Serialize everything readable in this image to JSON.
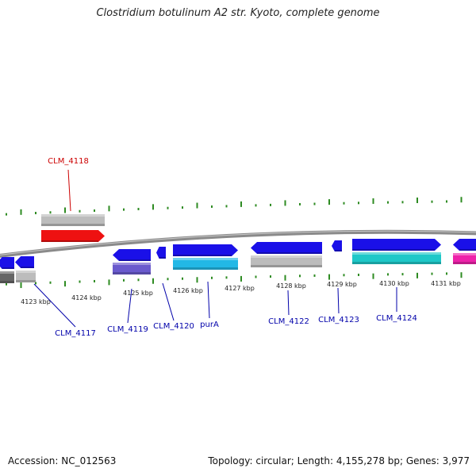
{
  "title": "Clostridium botulinum A2 str. Kyoto, complete genome",
  "footer": {
    "accession": "Accession: NC_012563",
    "summary": "Topology: circular; Length: 4,155,278 bp; Genes: 3,977"
  },
  "colors": {
    "backbone": "#777777",
    "tick": "#2e8b22",
    "forward_label": "#cc0000",
    "reverse_label": "#0000aa",
    "cds_blue": "#1a10e8",
    "rna_cyan": "#1ec8c8",
    "rna_red": "#ee1111",
    "gray": "#bcbcbc",
    "slate": "#6a5acd",
    "skyblue": "#22b8e6",
    "magenta": "#ee22aa",
    "darkgray": "#666666"
  },
  "ticks": [
    "4123 kbp",
    "4124 kbp",
    "4125 kbp",
    "4126 kbp",
    "4127 kbp",
    "4128 kbp",
    "4129 kbp",
    "4130 kbp",
    "4131 kbp"
  ],
  "genes": [
    {
      "label": "CLM_4117",
      "strand": "reverse"
    },
    {
      "label": "CLM_4118",
      "strand": "forward"
    },
    {
      "label": "CLM_4119",
      "strand": "reverse"
    },
    {
      "label": "CLM_4120",
      "strand": "reverse"
    },
    {
      "label": "purA",
      "strand": "forward"
    },
    {
      "label": "CLM_4122",
      "strand": "reverse"
    },
    {
      "label": "CLM_4123",
      "strand": "reverse"
    },
    {
      "label": "CLM_4124",
      "strand": "forward"
    }
  ]
}
